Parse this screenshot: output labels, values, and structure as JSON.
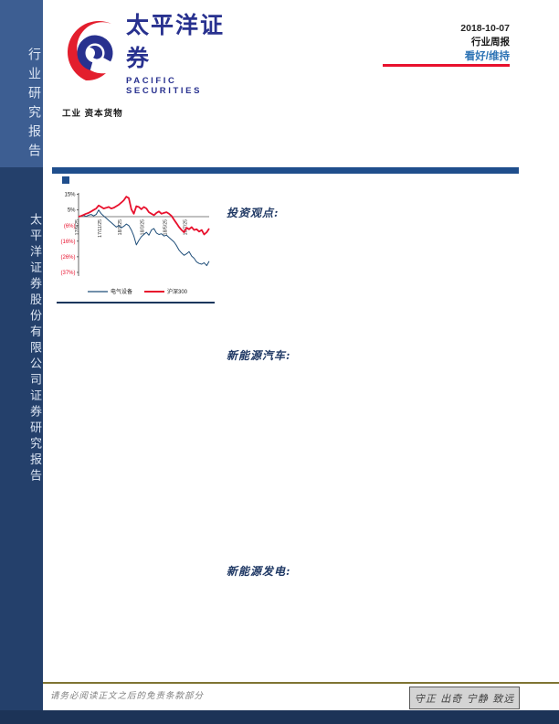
{
  "page": {
    "title": "行业研究报告封面"
  },
  "sidebar": {
    "top_label": "行业研究报告",
    "bottom_label": "太平洋证券股份有限公司证券研究报告"
  },
  "logo": {
    "name_cn": "太平洋证券",
    "name_en": "PACIFIC SECURITIES",
    "blue": "#28318f",
    "red": "#e31e2d"
  },
  "header": {
    "date": "2018-10-07",
    "report_type": "行业周报",
    "rating": "看好/维持",
    "accent_red": "#e8112d"
  },
  "subheader": {
    "industry_path": "工业 资本货物"
  },
  "sections": {
    "investment_view": "投资观点:",
    "new_energy_vehicle": "新能源汽车:",
    "new_energy_power": "新能源发电:"
  },
  "chart_data": {
    "type": "line",
    "x_tick_labels": [
      "17/9/25",
      "17/11/25",
      "18/1/25",
      "18/3/25",
      "18/5/25",
      "18/7/25"
    ],
    "x_tick_index": [
      0,
      9,
      17,
      26,
      35,
      43
    ],
    "y_tick_labels": [
      "15%",
      "5%",
      "(6%)",
      "(16%)",
      "(26%)",
      "(37%)"
    ],
    "y_tick_values": [
      15,
      4.5,
      -6,
      -16.5,
      -27,
      -37.5
    ],
    "ylim": [
      -40,
      16
    ],
    "zero_line": true,
    "legend_position": "bottom",
    "series": [
      {
        "name": "电气设备",
        "color": "#1f4e79",
        "width": 1,
        "values": [
          0,
          0.3,
          0.8,
          0.2,
          1.0,
          1.5,
          0.5,
          1.5,
          4.5,
          2.0,
          0.5,
          -1.0,
          -2.5,
          -4.0,
          -5.5,
          -7.0,
          -6.0,
          -7.5,
          -6.5,
          -5.0,
          -6.0,
          -9.0,
          -13.0,
          -19.0,
          -16.0,
          -13.5,
          -12.0,
          -10.5,
          -12.5,
          -9.0,
          -8.0,
          -11.0,
          -12.0,
          -11.5,
          -13.0,
          -12.5,
          -14.0,
          -15.5,
          -17.0,
          -19.5,
          -22.5,
          -24.5,
          -26.0,
          -25.0,
          -23.5,
          -26.5,
          -28.0,
          -30.5,
          -31.5,
          -32.0,
          -31.0,
          -33.0,
          -30.0
        ]
      },
      {
        "name": "沪深300",
        "color": "#e8112d",
        "width": 1.8,
        "values": [
          0,
          0.5,
          1.2,
          2.0,
          2.5,
          3.5,
          4.5,
          5.5,
          7.5,
          6.5,
          5.5,
          6.0,
          6.5,
          5.5,
          6.0,
          7.0,
          8.0,
          9.5,
          11.0,
          13.5,
          12.5,
          5.0,
          2.0,
          7.0,
          6.5,
          5.0,
          6.5,
          5.5,
          3.0,
          2.0,
          1.0,
          2.5,
          3.5,
          2.0,
          2.5,
          3.0,
          2.0,
          0.5,
          -2.0,
          -4.5,
          -7.0,
          -9.0,
          -10.5,
          -7.5,
          -8.5,
          -7.0,
          -9.0,
          -8.5,
          -10.0,
          -9.0,
          -12.0,
          -10.5,
          -8.0
        ]
      }
    ]
  },
  "footer": {
    "disclaimer": "请务必阅读正文之后的免责条款部分",
    "slogan": "守正 出奇 宁静 致远"
  }
}
